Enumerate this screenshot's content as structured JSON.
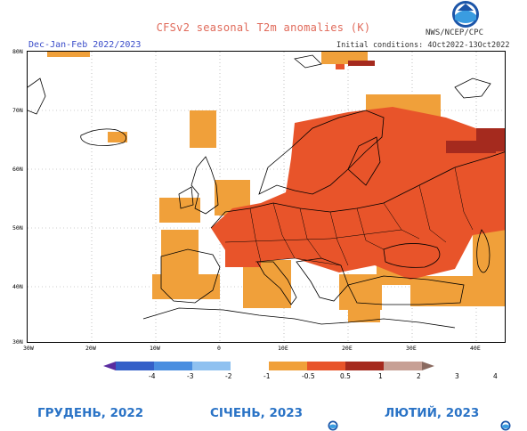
{
  "title": "CFSv2 seasonal T2m anomalies (K)",
  "period": "Dec-Jan-Feb 2022/2023",
  "agency": "NWS/NCEP/CPC",
  "initial_conditions": "Initial conditions: 4Oct2022-13Oct2022",
  "lat_labels": [
    "80N",
    "70N",
    "60N",
    "50N",
    "40N",
    "30N"
  ],
  "lon_labels": [
    "30W",
    "20W",
    "10W",
    "0",
    "10E",
    "20E",
    "30E",
    "40E"
  ],
  "colorbar": {
    "ticks": [
      "-4",
      "-3",
      "-2",
      "-1",
      "-0.5",
      "0.5",
      "1",
      "2",
      "3",
      "4"
    ],
    "colors": [
      "#5a2ca0",
      "#3560c8",
      "#4a8ee0",
      "#8fc1f0",
      "#ffffff",
      "#f0a03a",
      "#e8542a",
      "#a52a1e",
      "#c7a095",
      "#8a6a60"
    ]
  },
  "anomaly_colors": {
    "0.5-1": "#f0a03a",
    "1-2": "#e8542a",
    "2-3": "#a52a1e"
  },
  "months": [
    "ГРУДЕНЬ, 2022",
    "СІЧЕНЬ, 2023",
    "ЛЮТИЙ, 2023"
  ]
}
